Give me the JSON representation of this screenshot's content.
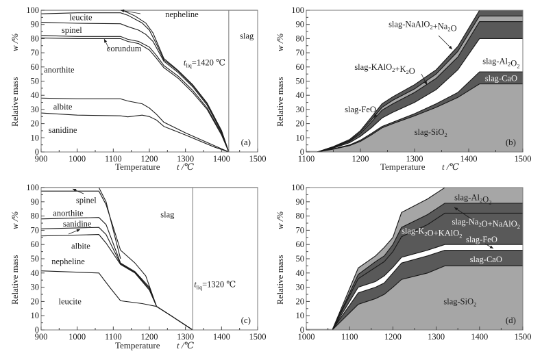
{
  "figure": {
    "colors": {
      "dark_band": "#595959",
      "light_band": "#a6a6a6",
      "gap": "#ffffff",
      "curve": "#1a1a1a",
      "frame": "#777777"
    }
  },
  "chart_data": [
    {
      "id": "a",
      "type": "line",
      "title": "",
      "panel_tag": "(a)",
      "xlabel": "Temperature",
      "xlabel_symbol": "t /℃",
      "ylabel": "Relative mass",
      "ylabel_symbol": "w /%",
      "xlim": [
        900,
        1500
      ],
      "ylim": [
        0,
        100
      ],
      "xticks": [
        900,
        1000,
        1100,
        1200,
        1300,
        1400,
        1500
      ],
      "yticks": [
        0,
        10,
        20,
        30,
        40,
        50,
        60,
        70,
        80,
        90,
        100
      ],
      "grid": false,
      "liquidus": {
        "t": 1420,
        "label_prefix": "t",
        "label_sub": "liq",
        "label_suffix": "=1420 ℃"
      },
      "series": [
        {
          "name": "sanidine/albite boundary",
          "x": [
            900,
            1000,
            1120,
            1140,
            1180,
            1200,
            1220,
            1240,
            1300,
            1380,
            1420
          ],
          "y": [
            27.5,
            26,
            25.5,
            24.8,
            26,
            25,
            22.5,
            18,
            12,
            3.5,
            0
          ]
        },
        {
          "name": "albite/anorthite boundary",
          "x": [
            900,
            1000,
            1120,
            1140,
            1180,
            1200,
            1220,
            1240,
            1300,
            1380,
            1420
          ],
          "y": [
            38,
            37.5,
            37.5,
            36,
            34,
            31,
            26.5,
            21,
            13.5,
            4.5,
            0
          ]
        },
        {
          "name": "anorthite/corundum boundary",
          "x": [
            900,
            1000,
            1120,
            1140,
            1170,
            1200,
            1220,
            1240,
            1280,
            1320,
            1360,
            1400,
            1420
          ],
          "y": [
            80.5,
            80,
            80,
            78,
            76.5,
            72,
            66,
            59.5,
            52,
            42,
            30,
            12,
            0
          ]
        },
        {
          "name": "corundum/spinel boundary",
          "x": [
            900,
            1000,
            1120,
            1140,
            1170,
            1200,
            1220,
            1240,
            1280,
            1320,
            1360,
            1400,
            1420
          ],
          "y": [
            82.2,
            81.5,
            81.5,
            79.5,
            78,
            74,
            68,
            61,
            53.5,
            43.5,
            31,
            13,
            0
          ]
        },
        {
          "name": "spinel/leucite boundary",
          "x": [
            900,
            1000,
            1120,
            1140,
            1170,
            1190,
            1210,
            1240,
            1280,
            1320,
            1360,
            1400,
            1420
          ],
          "y": [
            91.5,
            90.8,
            90.5,
            88.5,
            86,
            83,
            78,
            64,
            56,
            46,
            33,
            14,
            0
          ]
        },
        {
          "name": "leucite/nepheline boundary",
          "x": [
            900,
            1000,
            1120,
            1140,
            1180,
            1200,
            1220,
            1240,
            1280,
            1320,
            1360,
            1400,
            1420
          ],
          "y": [
            97.5,
            98.2,
            98.2,
            96.5,
            91,
            86,
            76,
            65,
            57,
            47,
            34,
            15,
            0
          ]
        },
        {
          "name": "nepheline/slag boundary",
          "x": [
            900,
            1120,
            1130,
            1160,
            1190,
            1210,
            1240,
            1280,
            1320,
            1360,
            1400,
            1420
          ],
          "y": [
            100,
            100,
            99.5,
            96,
            91,
            84,
            66,
            57.5,
            47.5,
            34.5,
            15,
            0
          ]
        }
      ],
      "region_labels": [
        {
          "text": "leucite",
          "x": 1010,
          "y": 95
        },
        {
          "text": "spinel",
          "x": 985,
          "y": 86
        },
        {
          "text": "corundum",
          "x": 1130,
          "y": 73
        },
        {
          "text": "anorthite",
          "x": 950,
          "y": 58
        },
        {
          "text": "albite",
          "x": 960,
          "y": 32
        },
        {
          "text": "sanidine",
          "x": 960,
          "y": 15.5
        },
        {
          "text": "slag",
          "x": 1470,
          "y": 82
        },
        {
          "text": "nepheline",
          "x": 1290,
          "y": 97
        }
      ]
    },
    {
      "id": "b",
      "type": "area",
      "title": "",
      "panel_tag": "(b)",
      "xlabel": "Temperature",
      "xlabel_symbol": "t /℃",
      "ylabel": "Relative mass",
      "ylabel_symbol": "w /%",
      "xlim": [
        1100,
        1500
      ],
      "ylim": [
        0,
        100
      ],
      "xticks": [
        1100,
        1200,
        1300,
        1400,
        1500
      ],
      "yticks": [
        0,
        10,
        20,
        30,
        40,
        50,
        60,
        70,
        80,
        90,
        100
      ],
      "grid": false,
      "x": [
        1120,
        1150,
        1180,
        1200,
        1220,
        1240,
        1260,
        1300,
        1340,
        1380,
        1420,
        1500
      ],
      "boundaries": {
        "SiO2_top": [
          0,
          2,
          4.5,
          7.5,
          12,
          17,
          20,
          25.5,
          31.5,
          38.5,
          48,
          48
        ],
        "CaO_top": [
          0,
          2.2,
          5,
          8.3,
          13,
          18,
          21,
          27,
          34,
          42,
          56.5,
          56.5
        ],
        "FeO_top": [
          0,
          2.8,
          6.5,
          11,
          17,
          24,
          28,
          35,
          44,
          58,
          80,
          80
        ],
        "KAlO2_top": [
          0,
          3.2,
          7.5,
          13,
          21,
          29.5,
          34,
          42,
          52,
          67,
          92,
          92
        ],
        "NaAlO2_mid": [
          0,
          3.5,
          8,
          14,
          22.5,
          31.5,
          36.5,
          44.5,
          55,
          71,
          96,
          96
        ],
        "total": [
          0,
          3.8,
          8.8,
          15,
          24.5,
          34,
          39,
          47.5,
          58,
          74.5,
          100,
          100
        ]
      },
      "series": [
        {
          "name": "slag-SiO2",
          "from": null,
          "to": "SiO2_top",
          "shade": "light"
        },
        {
          "name": "slag-CaO",
          "from": "SiO2_top",
          "to": "CaO_top",
          "shade": "dark"
        },
        {
          "name": "slag-Al2O3",
          "from": "CaO_top",
          "to": "FeO_top",
          "shade": "gap"
        },
        {
          "name": "slag-KAlO2+K2O",
          "from": "FeO_top",
          "to": "KAlO2_top",
          "shade": "dark"
        },
        {
          "name": "slag-FeO",
          "from": "KAlO2_top",
          "to": "NaAlO2_mid",
          "shade": "light"
        },
        {
          "name": "slag-NaAlO2+Na2O",
          "from": "NaAlO2_mid",
          "to": "total",
          "shade": "dark"
        }
      ],
      "region_labels": [
        {
          "text": "slag-NaAlO",
          "sub1": "2",
          "mid": "+Na",
          "sub2": "2",
          "end": "O",
          "x": 1315,
          "y": 90
        },
        {
          "text": "slag-KAlO",
          "sub1": "2",
          "mid": "+K",
          "sub2": "2",
          "end": "O",
          "x": 1245,
          "y": 60
        },
        {
          "text": "slag-FeO",
          "x": 1200,
          "y": 30
        },
        {
          "text": "slag-Al",
          "sub1": "2",
          "mid": "O",
          "sub2": "2",
          "end": "",
          "x": 1460,
          "y": 64
        },
        {
          "text": "slag-CaO",
          "x": 1460,
          "y": 52,
          "light": true
        },
        {
          "text": "slag-SiO",
          "sub1": "2",
          "x": 1330,
          "y": 14
        }
      ]
    },
    {
      "id": "c",
      "type": "line",
      "title": "",
      "panel_tag": "(c)",
      "xlabel": "Temperature",
      "xlabel_symbol": "t /℃",
      "ylabel": "Relative mass",
      "ylabel_symbol": "w /%",
      "xlim": [
        900,
        1500
      ],
      "ylim": [
        0,
        100
      ],
      "xticks": [
        900,
        1000,
        1100,
        1200,
        1300,
        1400,
        1500
      ],
      "yticks": [
        0,
        10,
        20,
        30,
        40,
        50,
        60,
        70,
        80,
        90,
        100
      ],
      "grid": false,
      "liquidus": {
        "t": 1320,
        "label_prefix": "t",
        "label_sub": "liq",
        "label_suffix": "=1320 ℃"
      },
      "series": [
        {
          "name": "leucite/nepheline boundary",
          "x": [
            900,
            1060,
            1090,
            1120,
            1180,
            1220,
            1260,
            1320
          ],
          "y": [
            41.5,
            40,
            30,
            20.5,
            18.5,
            16.5,
            10,
            0
          ]
        },
        {
          "name": "nepheline/albite boundary",
          "x": [
            900,
            1060,
            1080,
            1120,
            1160,
            1200,
            1220,
            1260,
            1320
          ],
          "y": [
            66,
            67,
            61,
            46,
            40,
            28,
            16.5,
            10,
            0
          ]
        },
        {
          "name": "albite/sanidine boundary",
          "x": [
            900,
            1060,
            1080,
            1120,
            1160,
            1200,
            1220,
            1260,
            1320
          ],
          "y": [
            71,
            72,
            67,
            46.5,
            40.5,
            29,
            16.5,
            10,
            0
          ]
        },
        {
          "name": "sanidine/anorthite boundary",
          "x": [
            900,
            1060,
            1080,
            1120,
            1160,
            1200,
            1220,
            1260,
            1320
          ],
          "y": [
            78,
            79,
            74,
            47,
            41,
            30,
            16.5,
            10,
            0
          ]
        },
        {
          "name": "anorthite/spinel boundary",
          "x": [
            900,
            1060,
            1080,
            1120,
            1160,
            1190,
            1220,
            1260,
            1320
          ],
          "y": [
            97.5,
            97.5,
            88,
            56,
            47,
            38,
            16.5,
            10,
            0
          ]
        },
        {
          "name": "spinel/slag boundary",
          "x": [
            900,
            1060,
            1080,
            1100,
            1120
          ],
          "y": [
            100,
            100,
            90,
            70,
            50
          ]
        }
      ],
      "region_labels": [
        {
          "text": "spinel",
          "x": 1025,
          "y": 91
        },
        {
          "text": "anorthite",
          "x": 975,
          "y": 82
        },
        {
          "text": "sanidine",
          "x": 1000,
          "y": 74.5
        },
        {
          "text": "albite",
          "x": 1010,
          "y": 59
        },
        {
          "text": "nepheline",
          "x": 975,
          "y": 48
        },
        {
          "text": "leucite",
          "x": 980,
          "y": 20
        },
        {
          "text": "slag",
          "x": 1250,
          "y": 81
        }
      ]
    },
    {
      "id": "d",
      "type": "area",
      "title": "",
      "panel_tag": "(d)",
      "xlabel": "",
      "ylabel": "Relative mass",
      "ylabel_symbol": "w /%",
      "xlim": [
        1000,
        1500
      ],
      "ylim": [
        0,
        100
      ],
      "xticks": [
        1000,
        1100,
        1200,
        1300,
        1400,
        1500
      ],
      "yticks": [
        0,
        10,
        20,
        30,
        40,
        50,
        60,
        70,
        80,
        90,
        100
      ],
      "grid": false,
      "x": [
        1060,
        1120,
        1160,
        1180,
        1200,
        1220,
        1280,
        1320,
        1500
      ],
      "boundaries": {
        "SiO2_top": [
          0,
          18,
          22,
          25,
          30,
          35.5,
          40,
          45,
          45
        ],
        "CaO_top": [
          0,
          26,
          30,
          33,
          40,
          47,
          52,
          56,
          56
        ],
        "gap_top": [
          0,
          30,
          34,
          38,
          44,
          51,
          56,
          60,
          60
        ],
        "K2O_top": [
          0,
          36,
          44,
          48,
          55,
          65.5,
          74,
          82,
          82
        ],
        "Na2O_top": [
          0,
          39,
          48,
          52,
          60,
          72,
          81,
          89,
          89
        ],
        "total": [
          0,
          43.5,
          52,
          58,
          65,
          82.5,
          92,
          100,
          100
        ]
      },
      "series": [
        {
          "name": "slag-SiO2",
          "from": null,
          "to": "SiO2_top",
          "shade": "light"
        },
        {
          "name": "slag-CaO",
          "from": "SiO2_top",
          "to": "CaO_top",
          "shade": "dark"
        },
        {
          "name": "slag-FeO",
          "from": "CaO_top",
          "to": "gap_top",
          "shade": "gap"
        },
        {
          "name": "slag-K2O+KAlO2",
          "from": "gap_top",
          "to": "K2O_top",
          "shade": "dark"
        },
        {
          "name": "slag-Na2O+NaAlO2",
          "from": "K2O_top",
          "to": "Na2O_top",
          "shade": "dark"
        },
        {
          "name": "slag-Al2O3",
          "from": "Na2O_top",
          "to": "total",
          "shade": "light"
        }
      ],
      "region_labels": [
        {
          "text": "slag-Al",
          "sub1": "2",
          "mid": "O",
          "sub2": "2",
          "end": "",
          "x": 1385,
          "y": 93
        },
        {
          "text": "slag-Na",
          "sub1": "2",
          "mid": "O+NaAlO",
          "sub2": "2",
          "end": "",
          "x": 1415,
          "y": 76,
          "light": true
        },
        {
          "text": "slag-K",
          "sub1": "2",
          "mid": "O+KAlO",
          "sub2": "2",
          "end": "",
          "x": 1290,
          "y": 69.5,
          "light": true
        },
        {
          "text": "slag-FeO",
          "x": 1405,
          "y": 63.5,
          "light": true
        },
        {
          "text": "slag-CaO",
          "x": 1415,
          "y": 49.5,
          "light": true
        },
        {
          "text": "slag-SiO",
          "sub1": "2",
          "x": 1355,
          "y": 20
        }
      ]
    }
  ]
}
